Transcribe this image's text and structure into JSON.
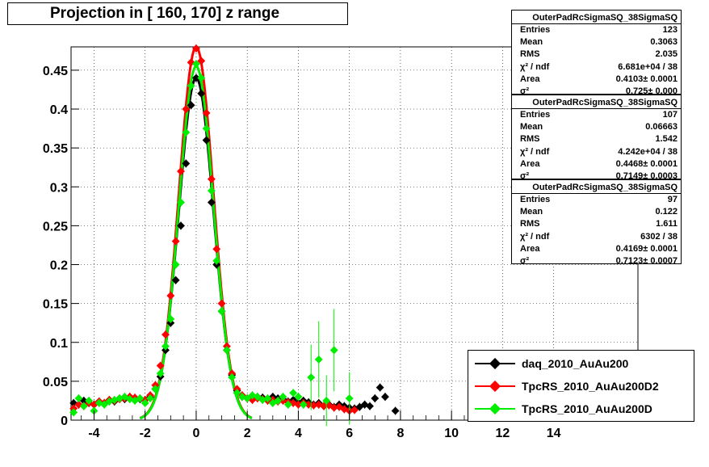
{
  "title": "Projection in [ 160, 170] z range",
  "stats_boxes": [
    {
      "name": "OuterPadRcSigmaSQ_38SigmaSQ",
      "rows": [
        {
          "label": "Entries",
          "value": "123"
        },
        {
          "label": "Mean",
          "value": "0.3063"
        },
        {
          "label": "RMS",
          "value": "2.035"
        },
        {
          "label": "χ² / ndf",
          "value": "6.681e+04 / 38"
        },
        {
          "label": "Area",
          "value": "0.4103± 0.0001"
        },
        {
          "label": "σ²",
          "value": "0.725± 0.000"
        }
      ]
    },
    {
      "name": "OuterPadRcSigmaSQ_38SigmaSQ",
      "rows": [
        {
          "label": "Entries",
          "value": "107"
        },
        {
          "label": "Mean",
          "value": "0.06663"
        },
        {
          "label": "RMS",
          "value": "1.542"
        },
        {
          "label": "χ² / ndf",
          "value": "4.242e+04 / 38"
        },
        {
          "label": "Area",
          "value": "0.4468± 0.0001"
        },
        {
          "label": "σ²",
          "value": "0.7149± 0.0003"
        }
      ]
    },
    {
      "name": "OuterPadRcSigmaSQ_38SigmaSQ",
      "rows": [
        {
          "label": "Entries",
          "value": "97"
        },
        {
          "label": "Mean",
          "value": "0.122"
        },
        {
          "label": "RMS",
          "value": "1.611"
        },
        {
          "label": "χ² / ndf",
          "value": "6302 / 38"
        },
        {
          "label": "Area",
          "value": "0.4169± 0.0001"
        },
        {
          "label": "σ²",
          "value": "0.7123± 0.0007"
        }
      ]
    }
  ],
  "chart_data": {
    "type": "scatter",
    "title": "Projection in [ 160, 170] z range",
    "xlim": [
      -4.9,
      17.3
    ],
    "ylim": [
      0,
      0.48
    ],
    "x_ticks": [
      -4,
      -2,
      0,
      2,
      4,
      6,
      8,
      10,
      12,
      14
    ],
    "y_ticks": [
      0,
      0.05,
      0.1,
      0.15,
      0.2,
      0.25,
      0.3,
      0.35,
      0.4,
      0.45
    ],
    "y_tick_labels": [
      "0",
      "0.05",
      "0.1",
      "0.15",
      "0.2",
      "0.25",
      "0.3",
      "0.35",
      "0.4",
      "0.45"
    ],
    "grid": true,
    "legend_position": "bottom-right",
    "series": [
      {
        "name": "daq_2010_AuAu200",
        "color": "#000000",
        "fit_sigma2": 0.725,
        "fit_peak": 0.44,
        "points": [
          [
            -4.8,
            0.022
          ],
          [
            -4.6,
            0.02
          ],
          [
            -4.4,
            0.025
          ],
          [
            -4.2,
            0.022
          ],
          [
            -4.0,
            0.02
          ],
          [
            -3.8,
            0.024
          ],
          [
            -3.6,
            0.022
          ],
          [
            -3.4,
            0.026
          ],
          [
            -3.2,
            0.024
          ],
          [
            -3.0,
            0.028
          ],
          [
            -2.8,
            0.027
          ],
          [
            -2.6,
            0.03
          ],
          [
            -2.4,
            0.028
          ],
          [
            -2.2,
            0.027
          ],
          [
            -2.0,
            0.026
          ],
          [
            -1.8,
            0.03
          ],
          [
            -1.6,
            0.04
          ],
          [
            -1.4,
            0.056
          ],
          [
            -1.2,
            0.09
          ],
          [
            -1.0,
            0.125
          ],
          [
            -0.8,
            0.18
          ],
          [
            -0.6,
            0.25
          ],
          [
            -0.4,
            0.33
          ],
          [
            -0.2,
            0.405
          ],
          [
            0.0,
            0.44
          ],
          [
            0.2,
            0.42
          ],
          [
            0.4,
            0.36
          ],
          [
            0.6,
            0.28
          ],
          [
            0.8,
            0.2
          ],
          [
            1.0,
            0.14
          ],
          [
            1.2,
            0.09
          ],
          [
            1.4,
            0.058
          ],
          [
            1.6,
            0.038
          ],
          [
            1.8,
            0.03
          ],
          [
            2.0,
            0.028
          ],
          [
            2.2,
            0.027
          ],
          [
            2.4,
            0.03
          ],
          [
            2.6,
            0.029
          ],
          [
            2.8,
            0.026
          ],
          [
            3.0,
            0.03
          ],
          [
            3.2,
            0.028
          ],
          [
            3.4,
            0.027
          ],
          [
            3.6,
            0.024
          ],
          [
            3.8,
            0.026
          ],
          [
            4.0,
            0.022
          ],
          [
            4.2,
            0.025
          ],
          [
            4.4,
            0.023
          ],
          [
            4.6,
            0.02
          ],
          [
            4.8,
            0.022
          ],
          [
            5.0,
            0.018
          ],
          [
            5.2,
            0.02
          ],
          [
            5.4,
            0.017
          ],
          [
            5.6,
            0.02
          ],
          [
            5.8,
            0.018
          ],
          [
            6.0,
            0.016
          ],
          [
            6.2,
            0.015
          ],
          [
            6.4,
            0.017
          ],
          [
            6.6,
            0.02
          ],
          [
            6.8,
            0.018
          ],
          [
            7.0,
            0.028
          ],
          [
            7.2,
            0.042
          ],
          [
            7.4,
            0.03
          ],
          [
            7.8,
            0.012
          ]
        ]
      },
      {
        "name": "TpcRS_2010_AuAu200D2",
        "color": "#ff0000",
        "fit_sigma2": 0.7149,
        "fit_peak": 0.48,
        "points": [
          [
            -4.8,
            0.015
          ],
          [
            -4.6,
            0.02
          ],
          [
            -4.4,
            0.018
          ],
          [
            -4.2,
            0.022
          ],
          [
            -4.0,
            0.02
          ],
          [
            -3.8,
            0.024
          ],
          [
            -3.6,
            0.022
          ],
          [
            -3.4,
            0.026
          ],
          [
            -3.2,
            0.025
          ],
          [
            -3.0,
            0.027
          ],
          [
            -2.8,
            0.028
          ],
          [
            -2.6,
            0.03
          ],
          [
            -2.4,
            0.029
          ],
          [
            -2.2,
            0.028
          ],
          [
            -2.0,
            0.026
          ],
          [
            -1.8,
            0.032
          ],
          [
            -1.6,
            0.045
          ],
          [
            -1.4,
            0.07
          ],
          [
            -1.2,
            0.11
          ],
          [
            -1.0,
            0.16
          ],
          [
            -0.8,
            0.23
          ],
          [
            -0.6,
            0.32
          ],
          [
            -0.4,
            0.4
          ],
          [
            -0.2,
            0.46
          ],
          [
            0.0,
            0.478
          ],
          [
            0.2,
            0.462
          ],
          [
            0.4,
            0.395
          ],
          [
            0.6,
            0.31
          ],
          [
            0.8,
            0.22
          ],
          [
            1.0,
            0.15
          ],
          [
            1.2,
            0.095
          ],
          [
            1.4,
            0.06
          ],
          [
            1.6,
            0.04
          ],
          [
            1.8,
            0.032
          ],
          [
            2.0,
            0.028
          ],
          [
            2.2,
            0.026
          ],
          [
            2.4,
            0.028
          ],
          [
            2.6,
            0.027
          ],
          [
            2.8,
            0.025
          ],
          [
            3.0,
            0.026
          ],
          [
            3.2,
            0.024
          ],
          [
            3.4,
            0.025
          ],
          [
            3.6,
            0.023
          ],
          [
            3.8,
            0.022
          ],
          [
            4.0,
            0.02
          ],
          [
            4.2,
            0.022
          ],
          [
            4.4,
            0.02
          ],
          [
            4.6,
            0.019
          ],
          [
            4.8,
            0.02
          ],
          [
            5.0,
            0.018
          ],
          [
            5.2,
            0.019
          ],
          [
            5.4,
            0.016
          ],
          [
            5.6,
            0.017
          ],
          [
            5.8,
            0.014
          ],
          [
            6.0,
            0.012
          ],
          [
            6.2,
            0.013
          ]
        ]
      },
      {
        "name": "TpcRS_2010_AuAu200D",
        "color": "#00ee00",
        "fit_sigma2": 0.7123,
        "fit_peak": 0.455,
        "points": [
          [
            -4.8,
            0.01
          ],
          [
            -4.6,
            0.028
          ],
          [
            -4.4,
            0.018
          ],
          [
            -4.2,
            0.025
          ],
          [
            -4.0,
            0.012
          ],
          [
            -3.8,
            0.022
          ],
          [
            -3.6,
            0.02
          ],
          [
            -3.4,
            0.024
          ],
          [
            -3.2,
            0.026
          ],
          [
            -3.0,
            0.028
          ],
          [
            -2.8,
            0.03
          ],
          [
            -2.6,
            0.027
          ],
          [
            -2.4,
            0.025
          ],
          [
            -2.2,
            0.028
          ],
          [
            -2.0,
            0.022
          ],
          [
            -1.8,
            0.028
          ],
          [
            -1.6,
            0.04
          ],
          [
            -1.4,
            0.06
          ],
          [
            -1.2,
            0.095
          ],
          [
            -1.0,
            0.13
          ],
          [
            -0.8,
            0.2
          ],
          [
            -0.6,
            0.28
          ],
          [
            -0.4,
            0.37
          ],
          [
            -0.2,
            0.43
          ],
          [
            0.0,
            0.458
          ],
          [
            0.2,
            0.44
          ],
          [
            0.4,
            0.375
          ],
          [
            0.6,
            0.295
          ],
          [
            0.8,
            0.205
          ],
          [
            1.0,
            0.14
          ],
          [
            1.2,
            0.09
          ],
          [
            1.4,
            0.055
          ],
          [
            1.6,
            0.035
          ],
          [
            1.8,
            0.03
          ],
          [
            2.0,
            0.028
          ],
          [
            2.2,
            0.032
          ],
          [
            2.4,
            0.03
          ],
          [
            2.6,
            0.026
          ],
          [
            2.8,
            0.028
          ],
          [
            3.0,
            0.022
          ],
          [
            3.2,
            0.025
          ],
          [
            3.4,
            0.03
          ],
          [
            3.6,
            0.02
          ],
          [
            3.8,
            0.035
          ],
          [
            4.0,
            0.03
          ],
          [
            4.2,
            0.02
          ],
          [
            4.5,
            0.055
          ],
          [
            4.8,
            0.078
          ],
          [
            5.1,
            0.025
          ],
          [
            5.4,
            0.09
          ],
          [
            6.0,
            0.028
          ]
        ]
      }
    ]
  },
  "legend": [
    {
      "label": "daq_2010_AuAu200",
      "color": "#000000"
    },
    {
      "label": "TpcRS_2010_AuAu200D2",
      "color": "#ff0000"
    },
    {
      "label": "TpcRS_2010_AuAu200D",
      "color": "#00ee00"
    }
  ]
}
